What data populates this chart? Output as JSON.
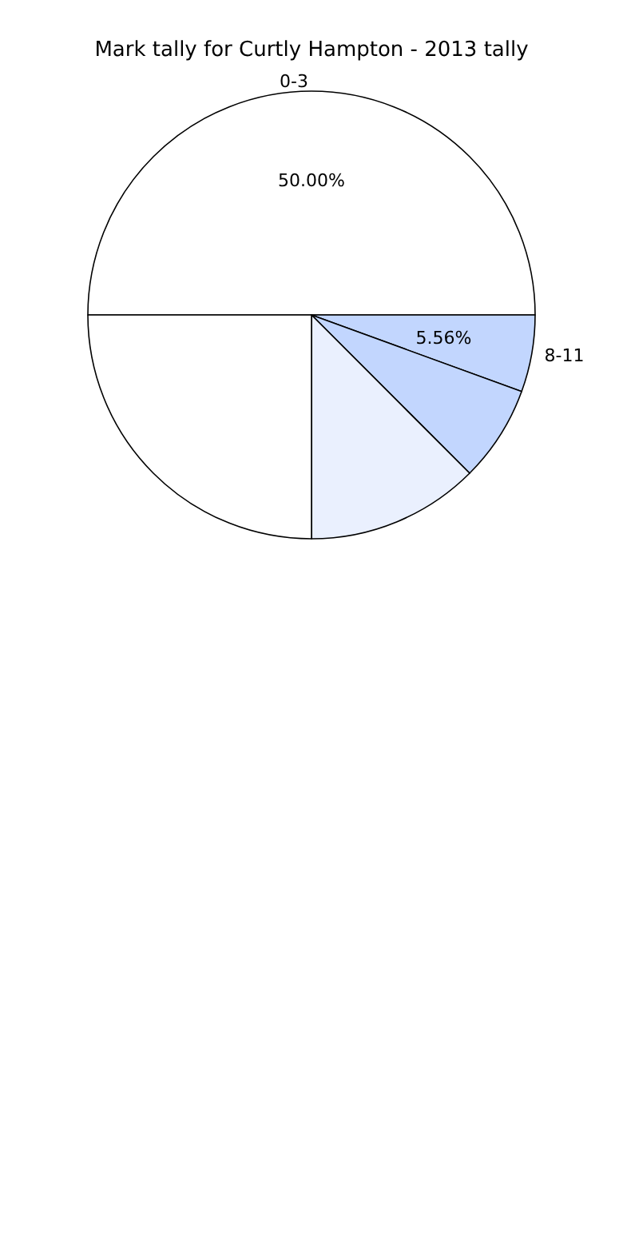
{
  "chart_data": {
    "type": "pie",
    "title": "Mark tally for Curtly Hampton - 2013 tally",
    "categories": [
      "0-3",
      "8-11",
      null,
      null,
      null
    ],
    "values": [
      50,
      5.56,
      6.94,
      12.5,
      25
    ],
    "colors": [
      "#ffffff",
      "#c2d6fe",
      "#c2d6fe",
      "#eaf0fe",
      "#ffffff"
    ],
    "value_labels": [
      "50.00%",
      "5.56%",
      null,
      null,
      null
    ],
    "legend": false
  }
}
